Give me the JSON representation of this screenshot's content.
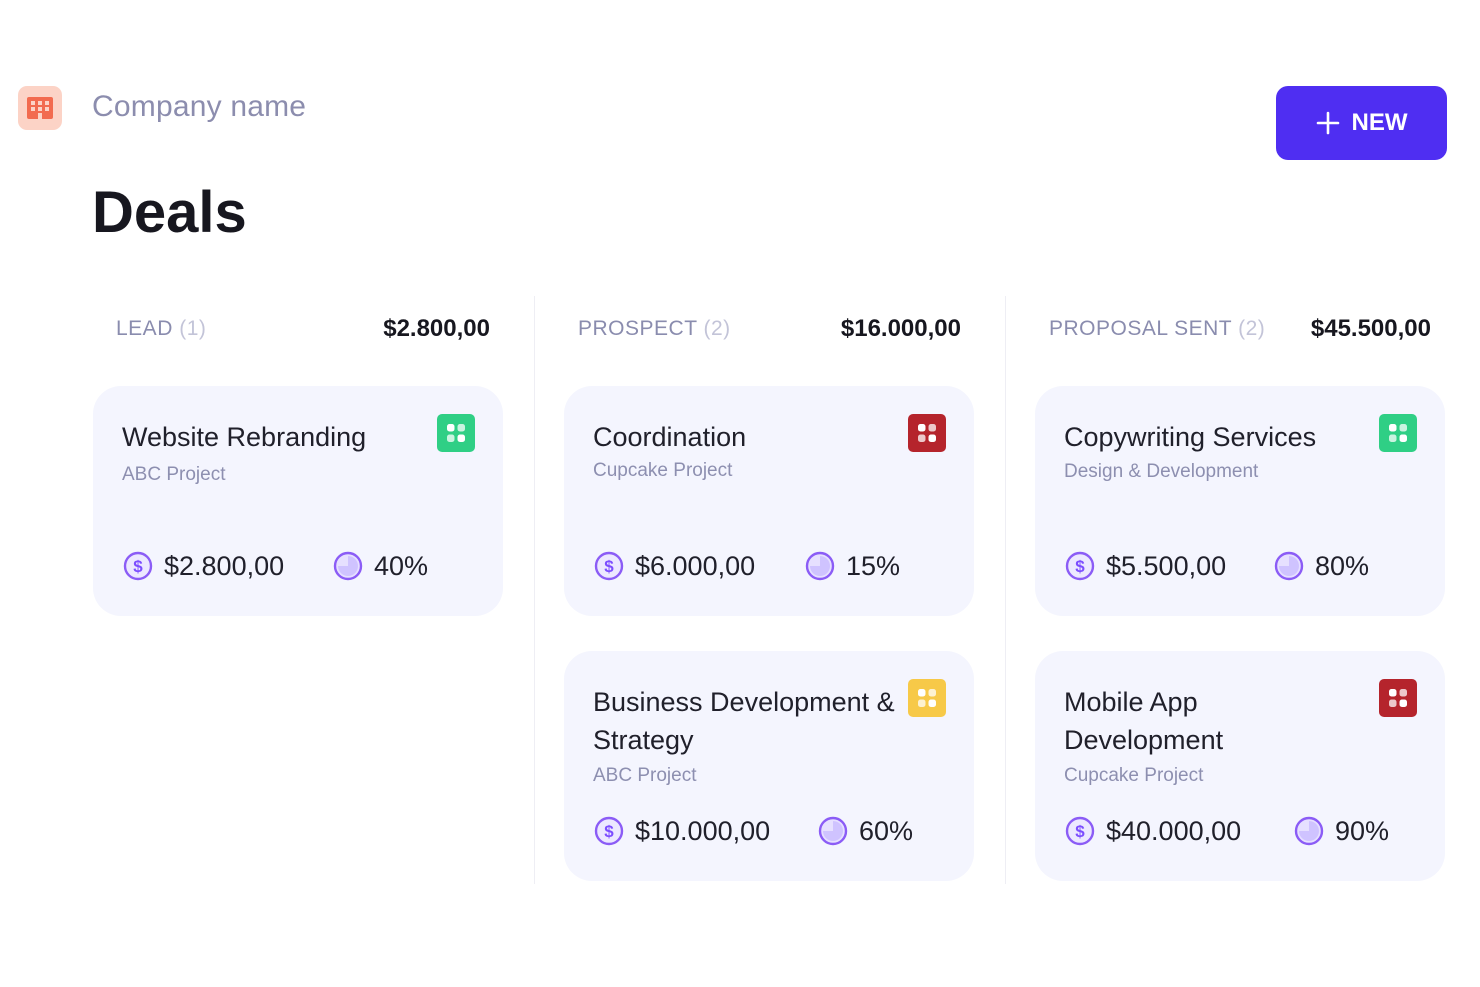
{
  "header": {
    "company_name": "Company name",
    "page_title": "Deals",
    "new_button_label": "NEW",
    "logo_icon": "building-icon",
    "logo_color": "#f26b4f",
    "accent_color": "#4f2ef2"
  },
  "columns": [
    {
      "label": "LEAD",
      "count": "(1)",
      "total": "$2.800,00",
      "cards": [
        {
          "title": "Website Rebranding",
          "subtitle": "ABC Project",
          "amount": "$2.800,00",
          "probability": "40%",
          "badge_color": "#2fcf85",
          "badge_icon": "apps-icon"
        }
      ]
    },
    {
      "label": "PROSPECT",
      "count": "(2)",
      "total": "$16.000,00",
      "cards": [
        {
          "title": "Coordination",
          "subtitle": "Cupcake Project",
          "amount": "$6.000,00",
          "probability": "15%",
          "badge_color": "#b5242c",
          "badge_icon": "apps-icon"
        },
        {
          "title": "Business Development & Strategy",
          "subtitle": "ABC Project",
          "amount": "$10.000,00",
          "probability": "60%",
          "badge_color": "#f7c948",
          "badge_icon": "apps-icon"
        }
      ]
    },
    {
      "label": "PROPOSAL SENT",
      "count": "(2)",
      "total": "$45.500,00",
      "cards": [
        {
          "title": "Copywriting Services",
          "subtitle": "Design & Development",
          "amount": "$5.500,00",
          "probability": "80%",
          "badge_color": "#2fcf85",
          "badge_icon": "apps-icon"
        },
        {
          "title": "Mobile App Development",
          "subtitle": "Cupcake Project",
          "amount": "$40.000,00",
          "probability": "90%",
          "badge_color": "#b5242c",
          "badge_icon": "apps-icon"
        }
      ]
    }
  ],
  "icons": {
    "amount": "dollar-icon",
    "probability": "pie-chart-icon"
  }
}
